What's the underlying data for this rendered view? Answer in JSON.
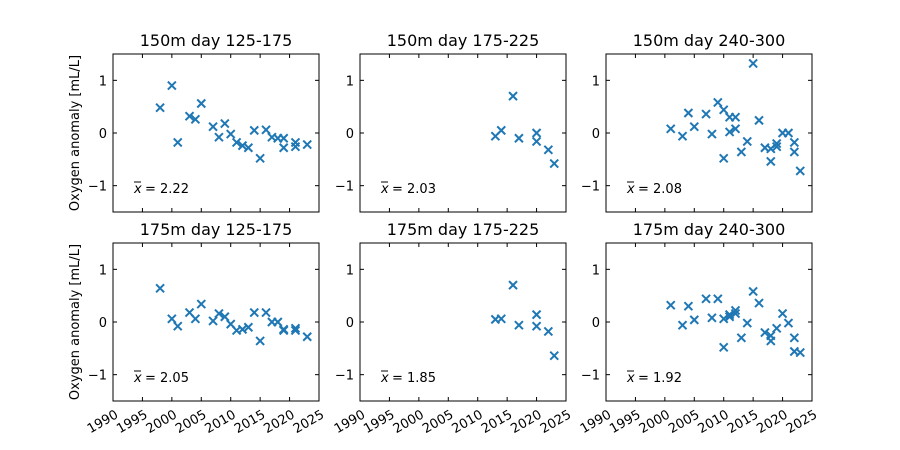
{
  "colors": {
    "marker": "#1f77b4"
  },
  "shared_axes": {
    "ylabel": "Oxygen anomaly [mL/L]",
    "xlim": [
      1990,
      2025
    ],
    "ylim": [
      -1.5,
      1.5
    ],
    "xticks": [
      "1990",
      "1995",
      "2000",
      "2005",
      "2010",
      "2015",
      "2020",
      "2025"
    ],
    "yticks": [
      "−1",
      "0",
      "1"
    ]
  },
  "chart_data": [
    {
      "type": "scatter",
      "title": "150m day 125-175",
      "marker": "x",
      "mean_label": "= 2.22",
      "x": [
        1998,
        2000,
        2001,
        2003,
        2004,
        2005,
        2007,
        2008,
        2009,
        2010,
        2011,
        2012,
        2013,
        2014,
        2015,
        2016,
        2017,
        2018,
        2019,
        2019,
        2021,
        2021,
        2023
      ],
      "y": [
        0.48,
        0.9,
        -0.18,
        0.32,
        0.26,
        0.56,
        0.12,
        -0.08,
        0.18,
        -0.02,
        -0.18,
        -0.24,
        -0.28,
        0.05,
        -0.48,
        0.06,
        -0.08,
        -0.1,
        -0.28,
        -0.1,
        -0.18,
        -0.26,
        -0.22
      ]
    },
    {
      "type": "scatter",
      "title": "150m day 175-225",
      "marker": "x",
      "mean_label": "= 2.03",
      "x": [
        2013,
        2014,
        2016,
        2017,
        2020,
        2020,
        2022,
        2023
      ],
      "y": [
        -0.06,
        0.05,
        0.7,
        -0.1,
        0.0,
        -0.16,
        -0.32,
        -0.58
      ]
    },
    {
      "type": "scatter",
      "title": "150m day 240-300",
      "marker": "x",
      "mean_label": "= 2.08",
      "x": [
        2001,
        2003,
        2004,
        2005,
        2007,
        2008,
        2009,
        2010,
        2010,
        2011,
        2011,
        2012,
        2012,
        2013,
        2014,
        2015,
        2016,
        2017,
        2018,
        2018,
        2019,
        2019,
        2020,
        2021,
        2022,
        2022,
        2023
      ],
      "y": [
        0.08,
        -0.06,
        0.38,
        0.12,
        0.36,
        -0.02,
        0.58,
        0.44,
        -0.48,
        0.3,
        0.02,
        0.08,
        0.3,
        -0.36,
        -0.16,
        1.32,
        0.24,
        -0.28,
        -0.3,
        -0.54,
        -0.2,
        -0.26,
        0.0,
        0.0,
        -0.36,
        -0.18,
        -0.72
      ]
    },
    {
      "type": "scatter",
      "title": "175m day 125-175",
      "marker": "x",
      "mean_label": "= 2.05",
      "x": [
        1998,
        2000,
        2001,
        2003,
        2004,
        2005,
        2007,
        2008,
        2009,
        2010,
        2011,
        2012,
        2013,
        2014,
        2015,
        2016,
        2017,
        2018,
        2019,
        2019,
        2021,
        2021,
        2023
      ],
      "y": [
        0.64,
        0.06,
        -0.08,
        0.18,
        0.06,
        0.34,
        0.02,
        0.16,
        0.1,
        -0.04,
        -0.16,
        -0.14,
        -0.1,
        0.18,
        -0.36,
        0.18,
        0.0,
        0.0,
        -0.16,
        -0.14,
        -0.12,
        -0.16,
        -0.28
      ]
    },
    {
      "type": "scatter",
      "title": "175m day 175-225",
      "marker": "x",
      "mean_label": "= 1.85",
      "x": [
        2013,
        2014,
        2016,
        2017,
        2020,
        2020,
        2022,
        2023
      ],
      "y": [
        0.05,
        0.06,
        0.7,
        -0.06,
        0.14,
        -0.08,
        -0.18,
        -0.64
      ]
    },
    {
      "type": "scatter",
      "title": "175m day 240-300",
      "marker": "x",
      "mean_label": "= 1.92",
      "x": [
        2001,
        2003,
        2004,
        2005,
        2007,
        2008,
        2009,
        2010,
        2010,
        2011,
        2011,
        2012,
        2012,
        2013,
        2014,
        2015,
        2016,
        2017,
        2018,
        2018,
        2019,
        2020,
        2021,
        2022,
        2022,
        2023
      ],
      "y": [
        0.32,
        -0.06,
        0.3,
        0.04,
        0.44,
        0.08,
        0.44,
        0.06,
        -0.48,
        0.14,
        0.1,
        0.22,
        0.16,
        -0.3,
        -0.02,
        0.58,
        0.36,
        -0.2,
        -0.26,
        -0.36,
        -0.12,
        0.16,
        -0.02,
        -0.3,
        -0.56,
        -0.58
      ]
    }
  ]
}
